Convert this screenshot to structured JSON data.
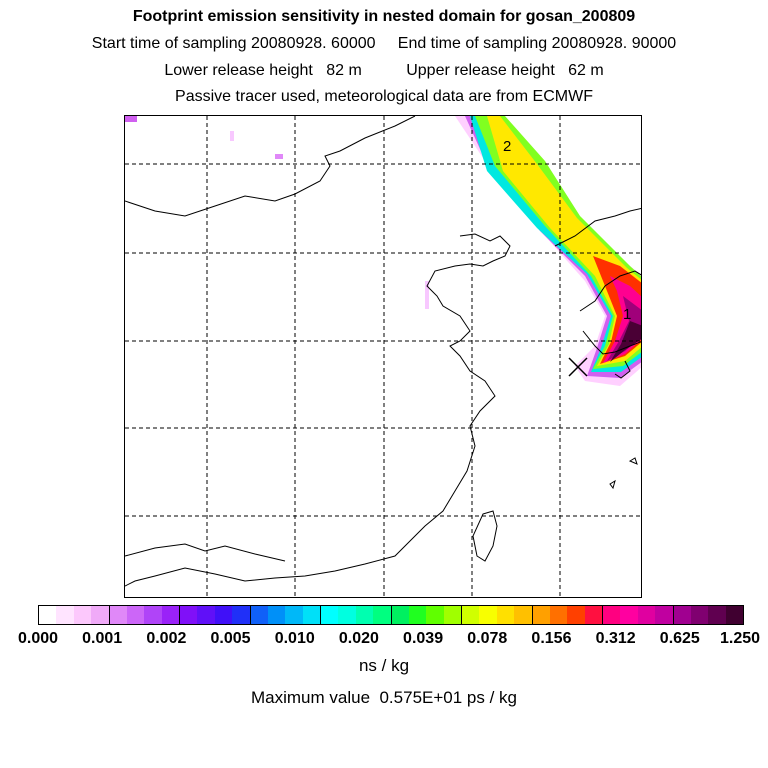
{
  "header": {
    "title": "Footprint emission sensitivity in nested domain for gosan_200809",
    "sampling_line": "Start time of sampling 20080928. 60000     End time of sampling 20080928. 90000",
    "release_line": "Lower release height   82 m          Upper release height   62 m",
    "tracer_line": "Passive tracer used, meteorological data are from ECMWF"
  },
  "map": {
    "labels": [
      {
        "id": "label-2",
        "text": "2"
      },
      {
        "id": "label-1",
        "text": "1"
      }
    ],
    "receptor_marker": "cross-marker-icon",
    "plume_colors": [
      "#ffe6ff",
      "#d060f0",
      "#3040ff",
      "#00ffe0",
      "#60ff00",
      "#ffe000",
      "#ff5000",
      "#ff0090",
      "#a0007a",
      "#50003c"
    ]
  },
  "colorbar": {
    "colors": [
      "#ffffff",
      "#ffe4ff",
      "#fcc8fc",
      "#f0aaf8",
      "#e088f8",
      "#cc66f8",
      "#b044f8",
      "#9a22f8",
      "#8010f8",
      "#6010f8",
      "#4010f8",
      "#2030f8",
      "#1060f8",
      "#0090f8",
      "#00b8f8",
      "#00e0f8",
      "#00ffff",
      "#00ffe0",
      "#00ffb0",
      "#00ff80",
      "#00f060",
      "#20ff20",
      "#60ff00",
      "#a0ff00",
      "#d0ff00",
      "#f8ff00",
      "#ffe000",
      "#ffc000",
      "#ffa000",
      "#ff7000",
      "#ff4000",
      "#ff1040",
      "#ff0080",
      "#ff00a0",
      "#e000a0",
      "#c000a0",
      "#a00090",
      "#800070",
      "#600050",
      "#400030"
    ],
    "ticks": [
      "0.000",
      "0.001",
      "0.002",
      "0.005",
      "0.010",
      "0.020",
      "0.039",
      "0.078",
      "0.156",
      "0.312",
      "0.625",
      "1.250"
    ],
    "unit": "ns / kg",
    "max_value": "Maximum value  0.575E+01 ps / kg"
  }
}
